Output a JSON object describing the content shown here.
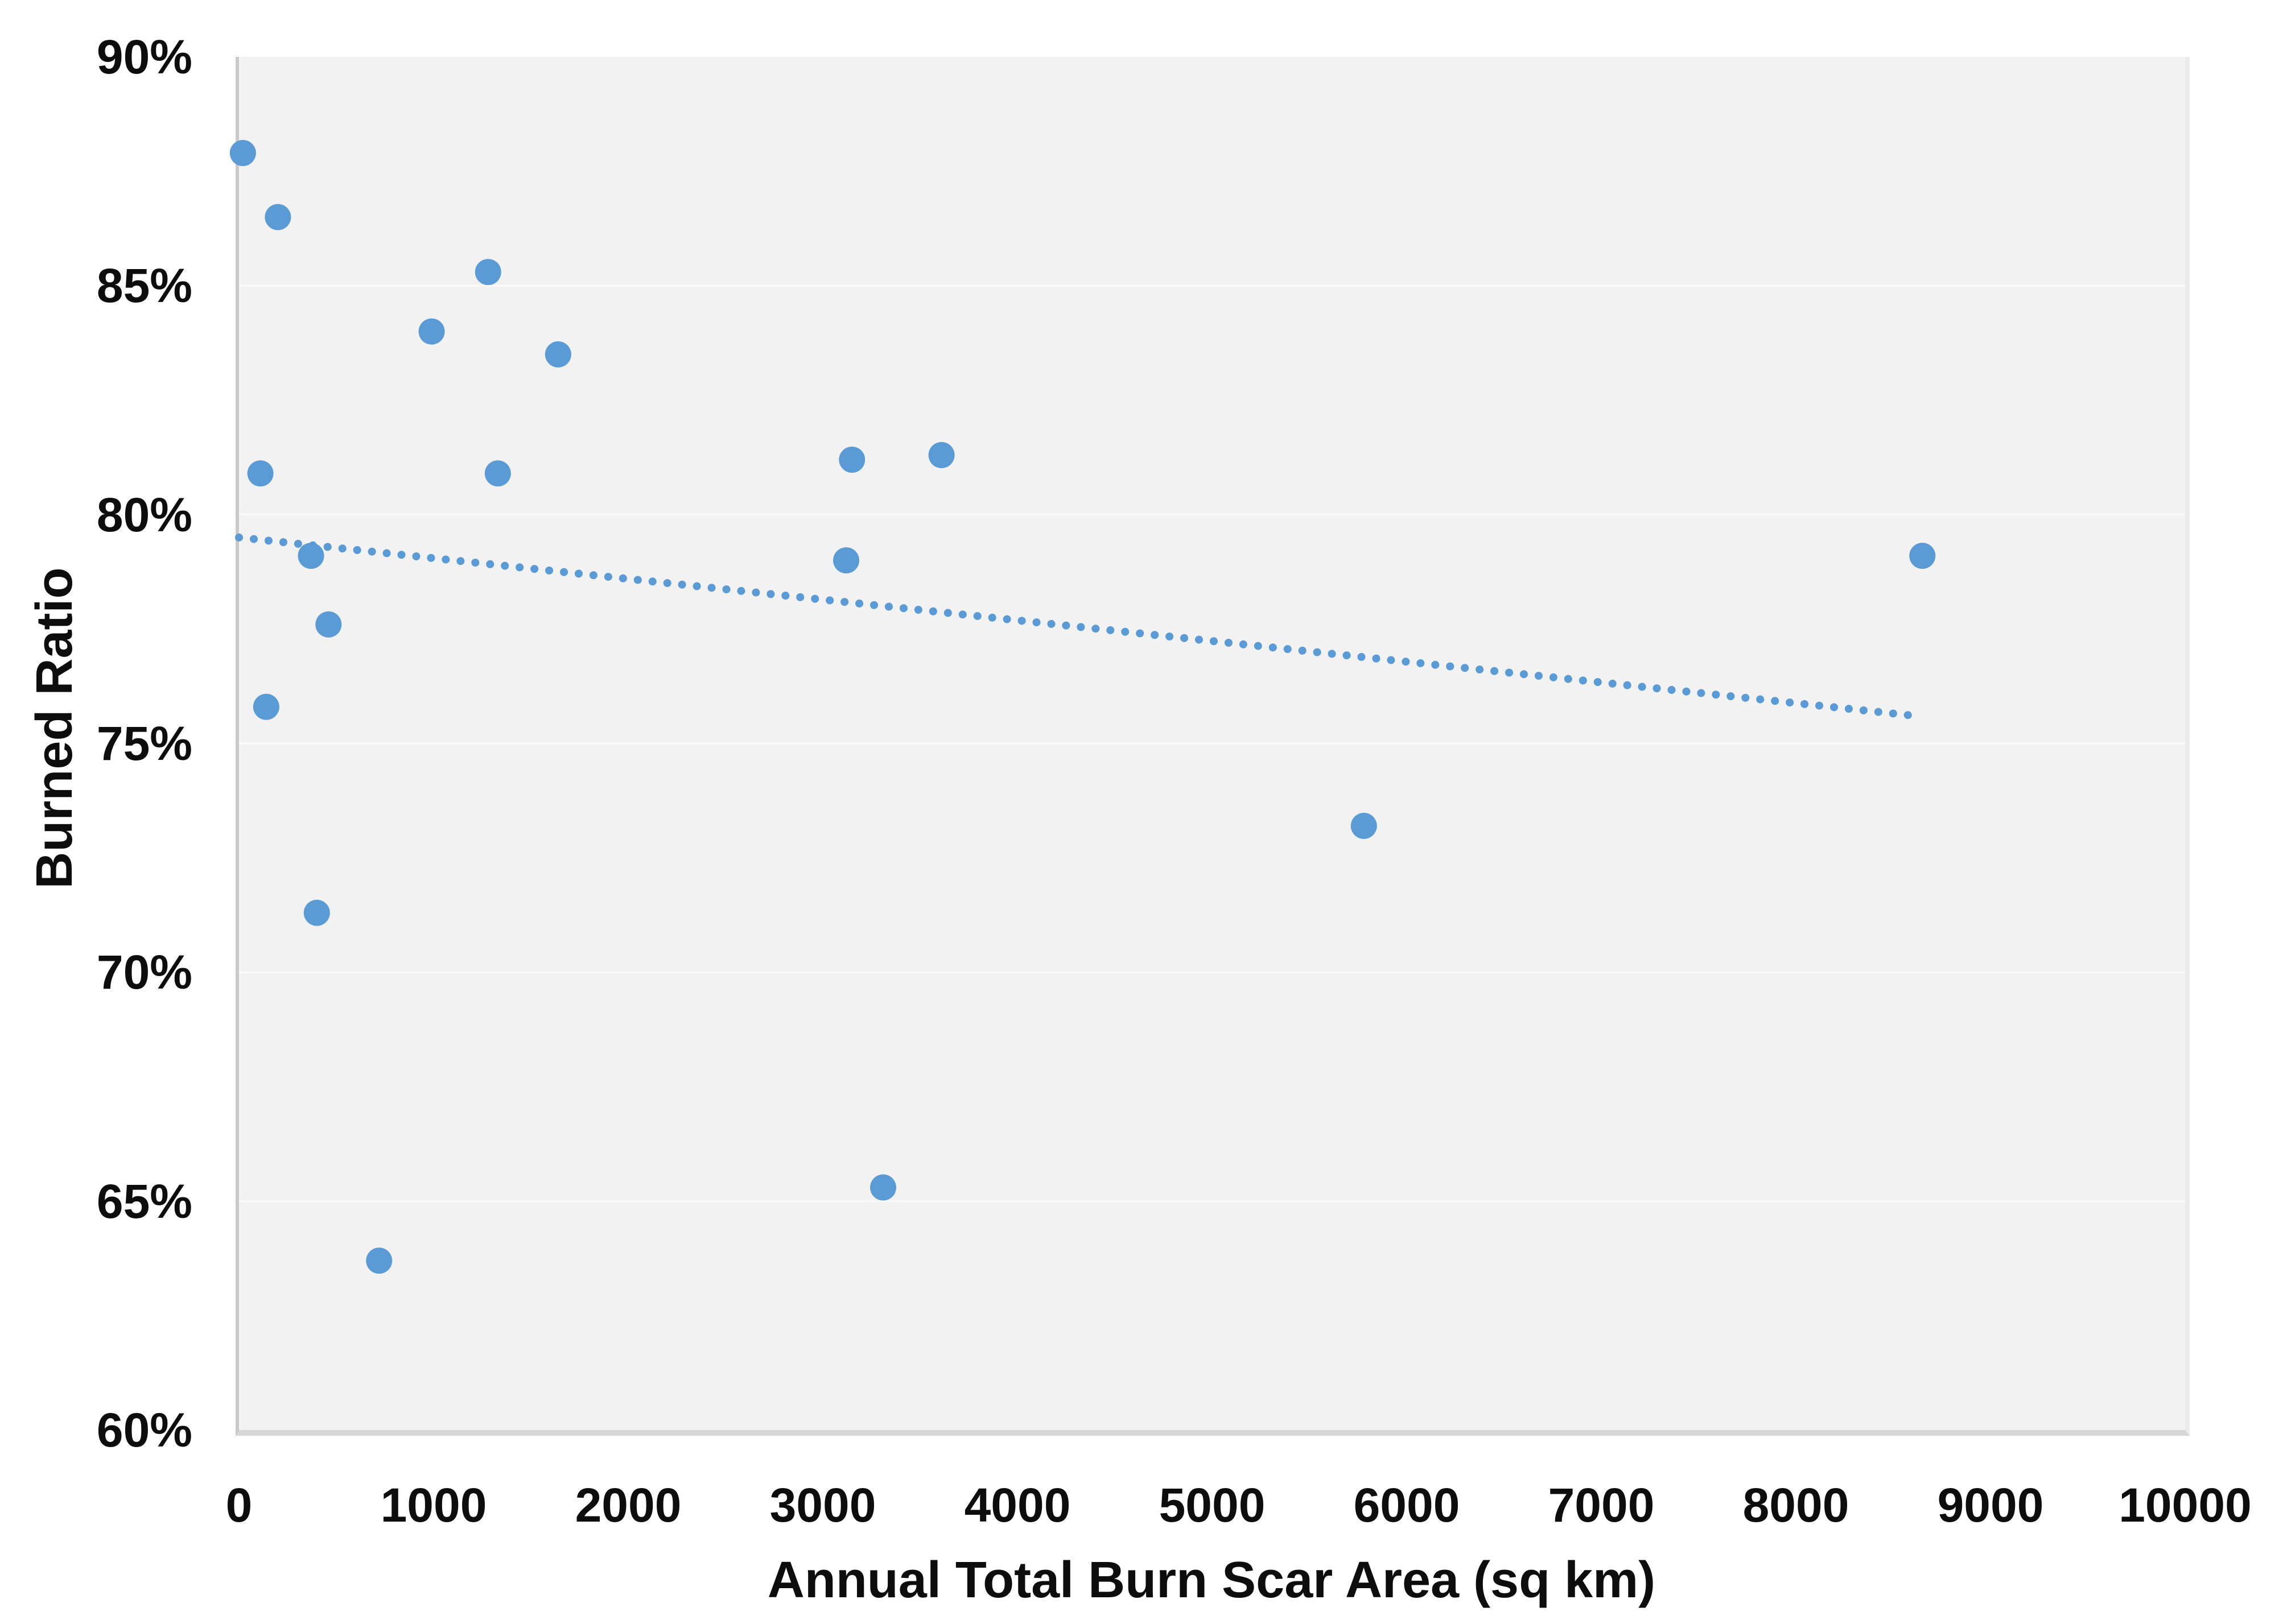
{
  "chart_data": {
    "type": "scatter",
    "title": "",
    "xlabel": "Annual Total Burn Scar Area (sq km)",
    "ylabel": "Burned Ratio",
    "xlim": [
      0,
      10000
    ],
    "ylim": [
      60,
      90
    ],
    "x_ticks": [
      0,
      1000,
      2000,
      3000,
      4000,
      5000,
      6000,
      7000,
      8000,
      9000,
      10000
    ],
    "x_tick_labels": [
      "0",
      "1000",
      "2000",
      "3000",
      "4000",
      "5000",
      "6000",
      "7000",
      "8000",
      "9000",
      "10000"
    ],
    "y_ticks": [
      90,
      85,
      80,
      75,
      70,
      65,
      60
    ],
    "y_tick_labels": [
      "90%",
      "85%",
      "80%",
      "75%",
      "70%",
      "65%",
      "60%"
    ],
    "grid": "faint-white-horizontal-major",
    "legend": "none",
    "points": [
      {
        "x": 20,
        "y": 87.9
      },
      {
        "x": 110,
        "y": 80.9
      },
      {
        "x": 140,
        "y": 75.8
      },
      {
        "x": 200,
        "y": 86.5
      },
      {
        "x": 370,
        "y": 79.1
      },
      {
        "x": 400,
        "y": 71.3
      },
      {
        "x": 460,
        "y": 77.6
      },
      {
        "x": 720,
        "y": 63.7
      },
      {
        "x": 990,
        "y": 84.0
      },
      {
        "x": 1280,
        "y": 85.3
      },
      {
        "x": 1330,
        "y": 80.9
      },
      {
        "x": 1640,
        "y": 83.5
      },
      {
        "x": 3120,
        "y": 79.0
      },
      {
        "x": 3150,
        "y": 81.2
      },
      {
        "x": 3310,
        "y": 65.3
      },
      {
        "x": 3610,
        "y": 81.3
      },
      {
        "x": 5780,
        "y": 73.2
      },
      {
        "x": 8650,
        "y": 79.1
      }
    ],
    "trendline": {
      "style": "dotted",
      "x1": 0,
      "y1": 79.5,
      "x2": 8620,
      "y2": 75.6
    },
    "colors": {
      "marker": "#5b9bd5",
      "trendline": "#5b9bd5",
      "plot_background": "#f2f2f2",
      "page_background": "#ffffff",
      "axis_line": "#c9c9c9",
      "text": "#0d0d0d",
      "gridline": "#ffffff"
    },
    "marker_radius_px": 23
  }
}
